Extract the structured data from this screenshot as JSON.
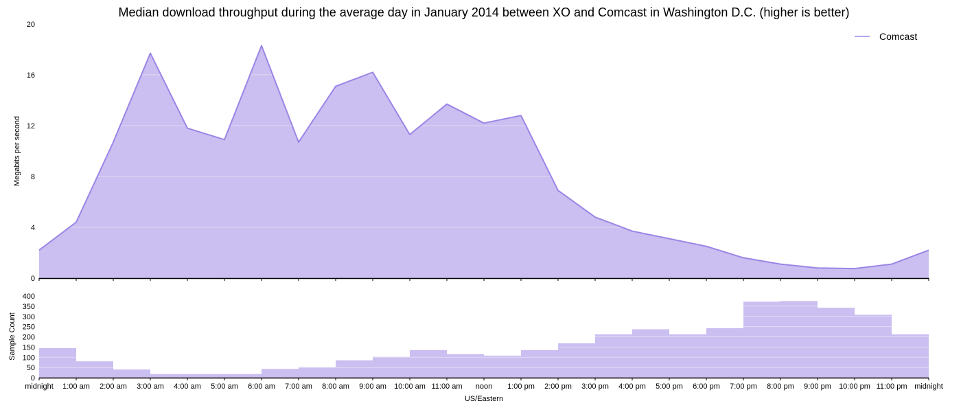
{
  "chart_data": {
    "title": "Median download throughput during the average day in January 2014 between XO and Comcast in Washington D.C. (higher is better)",
    "colors": {
      "fill": "#cbbef0",
      "line": "#9b85e6",
      "bar": "#cbbef0",
      "axis": "#000000"
    },
    "top": {
      "type": "area",
      "ylabel": "Megabits per second",
      "ylim": [
        0,
        20
      ],
      "yticks": [
        0,
        4,
        8,
        12,
        16,
        20
      ],
      "series": [
        {
          "name": "Comcast",
          "values": [
            2.2,
            4.4,
            10.7,
            17.7,
            11.8,
            10.9,
            18.3,
            10.7,
            15.1,
            16.2,
            11.3,
            13.7,
            12.2,
            12.8,
            6.9,
            4.8,
            3.7,
            3.1,
            2.5,
            1.6,
            1.1,
            0.8,
            0.75,
            1.1,
            2.2
          ]
        }
      ],
      "legend": {
        "position": "top-right",
        "entries": [
          "Comcast"
        ]
      }
    },
    "bottom": {
      "type": "bar",
      "ylabel": "Sample Count",
      "ylim": [
        0,
        430
      ],
      "yticks": [
        0,
        50,
        100,
        150,
        200,
        250,
        300,
        350,
        400
      ],
      "values": [
        145,
        80,
        40,
        18,
        18,
        18,
        43,
        52,
        85,
        102,
        135,
        115,
        108,
        135,
        168,
        212,
        237,
        212,
        242,
        372,
        375,
        342,
        308,
        212
      ]
    },
    "x": {
      "label": "US/Eastern",
      "tick_labels": [
        "midnight",
        "1:00 am",
        "2:00 am",
        "3:00 am",
        "4:00 am",
        "5:00 am",
        "6:00 am",
        "7:00 am",
        "8:00 am",
        "9:00 am",
        "10:00 am",
        "11:00 am",
        "noon",
        "1:00 pm",
        "2:00 pm",
        "3:00 pm",
        "4:00 pm",
        "5:00 pm",
        "6:00 pm",
        "7:00 pm",
        "8:00 pm",
        "9:00 pm",
        "10:00 pm",
        "11:00 pm",
        "midnight"
      ]
    }
  }
}
